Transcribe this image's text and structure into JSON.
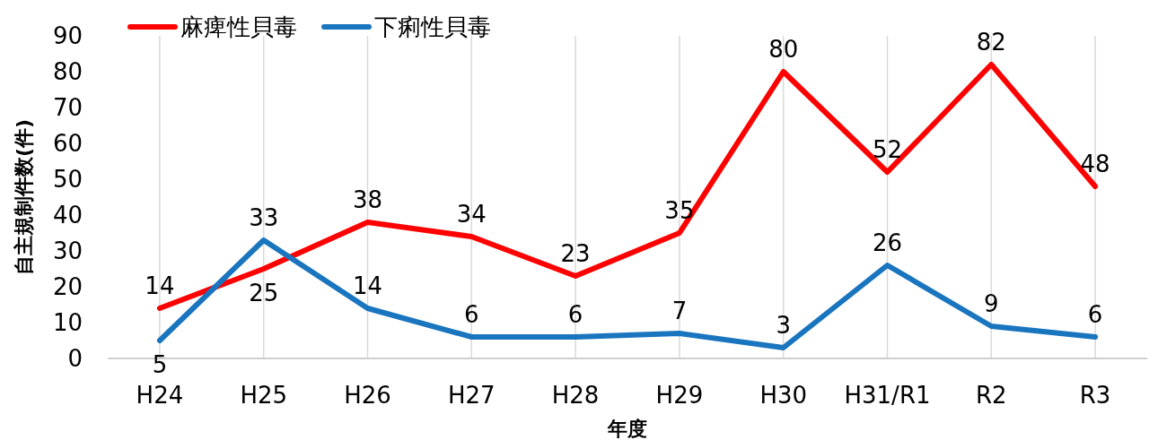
{
  "chart_data": {
    "type": "line",
    "xlabel": "年度",
    "ylabel": "自主規制件数(件)",
    "categories": [
      "H24",
      "H25",
      "H26",
      "H27",
      "H28",
      "H29",
      "H30",
      "H31/R1",
      "R2",
      "R3"
    ],
    "series": [
      {
        "name": "麻痺性貝毒",
        "color": "#ff0000",
        "values": [
          14,
          25,
          38,
          34,
          23,
          35,
          80,
          52,
          82,
          48
        ]
      },
      {
        "name": "下痢性貝毒",
        "color": "#1a75bf",
        "values": [
          5,
          33,
          14,
          6,
          6,
          7,
          3,
          26,
          9,
          6
        ]
      }
    ],
    "ylim": [
      0,
      90
    ],
    "yticks": [
      0,
      10,
      20,
      30,
      40,
      50,
      60,
      70,
      80,
      90
    ],
    "grid": "x",
    "legend": "top left",
    "data_labels": true,
    "marker": "none",
    "line_style": "solid"
  }
}
